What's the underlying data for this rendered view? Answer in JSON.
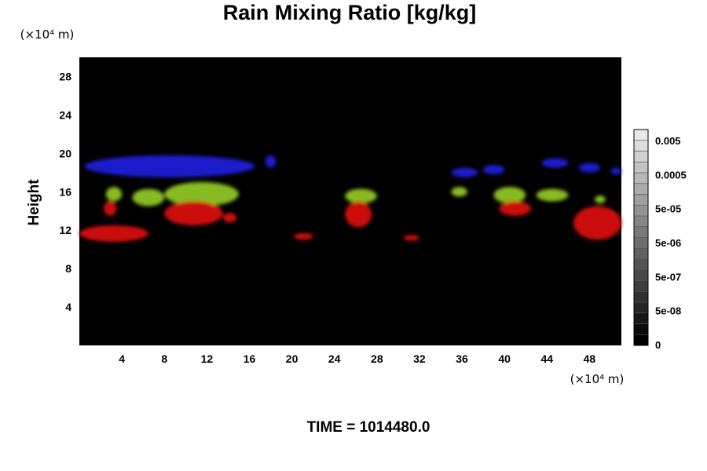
{
  "chart_data": {
    "type": "heatmap",
    "title": "Rain Mixing Ratio [kg/kg]",
    "ylabel": "Height",
    "x_unit": "(×10⁴ m)",
    "y_unit": "(×10⁴ m)",
    "xlim": [
      0,
      51
    ],
    "ylim": [
      0,
      30
    ],
    "x_ticks": [
      4,
      8,
      12,
      16,
      20,
      24,
      28,
      32,
      36,
      40,
      44,
      48
    ],
    "y_ticks": [
      4,
      8,
      12,
      16,
      20,
      24,
      28
    ],
    "x_tick_labels": [
      "4",
      "8",
      "12",
      "16",
      "20",
      "24",
      "28",
      "32",
      "36",
      "40",
      "44",
      "48"
    ],
    "y_tick_labels": [
      "4",
      "8",
      "12",
      "16",
      "20",
      "24",
      "28"
    ],
    "background_color": "#000000",
    "colorbar": {
      "labels": [
        "0.005",
        "0.0005",
        "5e-05",
        "5e-06",
        "5e-07",
        "5e-08",
        "0"
      ],
      "levels": [
        0.005,
        0.0005,
        5e-05,
        5e-06,
        5e-07,
        5e-08,
        0
      ],
      "bands": 20,
      "color_low": "#000000",
      "color_high": "#e8e8e8"
    },
    "series": [
      {
        "color": "#1a1acc",
        "regions": [
          {
            "x": [
              0.5,
              16.5
            ],
            "y": [
              17.5,
              19.8
            ]
          },
          {
            "x": [
              17.5,
              18.5
            ],
            "y": [
              18.5,
              19.8
            ]
          },
          {
            "x": [
              35,
              37.5
            ],
            "y": [
              17.5,
              18.5
            ]
          },
          {
            "x": [
              38,
              40
            ],
            "y": [
              17.8,
              18.8
            ]
          },
          {
            "x": [
              43.5,
              46
            ],
            "y": [
              18.5,
              19.5
            ]
          },
          {
            "x": [
              47,
              49
            ],
            "y": [
              18,
              19
            ]
          },
          {
            "x": [
              50,
              51
            ],
            "y": [
              17.8,
              18.5
            ]
          }
        ]
      },
      {
        "color": "#88bb22",
        "regions": [
          {
            "x": [
              2.5,
              4
            ],
            "y": [
              15,
              16.5
            ]
          },
          {
            "x": [
              5,
              8
            ],
            "y": [
              14.5,
              16.3
            ]
          },
          {
            "x": [
              8,
              15
            ],
            "y": [
              14.5,
              17
            ]
          },
          {
            "x": [
              25,
              28
            ],
            "y": [
              14.8,
              16.3
            ]
          },
          {
            "x": [
              35,
              36.5
            ],
            "y": [
              15.5,
              16.5
            ]
          },
          {
            "x": [
              39,
              42
            ],
            "y": [
              14.8,
              16.5
            ]
          },
          {
            "x": [
              43,
              46
            ],
            "y": [
              15,
              16.3
            ]
          },
          {
            "x": [
              48.5,
              49.5
            ],
            "y": [
              14.8,
              15.6
            ]
          }
        ]
      },
      {
        "color": "#cc1111",
        "regions": [
          {
            "x": [
              0,
              6.5
            ],
            "y": [
              10.8,
              12.5
            ]
          },
          {
            "x": [
              2.3,
              3.5
            ],
            "y": [
              13.5,
              15
            ]
          },
          {
            "x": [
              8,
              13.5
            ],
            "y": [
              12.5,
              15
            ]
          },
          {
            "x": [
              13.5,
              14.8
            ],
            "y": [
              12.8,
              13.8
            ]
          },
          {
            "x": [
              20.2,
              22
            ],
            "y": [
              11,
              11.7
            ]
          },
          {
            "x": [
              25,
              27.5
            ],
            "y": [
              12.3,
              15
            ]
          },
          {
            "x": [
              30.5,
              32
            ],
            "y": [
              10.9,
              11.5
            ]
          },
          {
            "x": [
              39.5,
              42.5
            ],
            "y": [
              13.5,
              15
            ]
          },
          {
            "x": [
              46.5,
              51
            ],
            "y": [
              11,
              14.5
            ]
          }
        ]
      }
    ]
  },
  "footer": {
    "time_text": "TIME = 1014480.0"
  }
}
